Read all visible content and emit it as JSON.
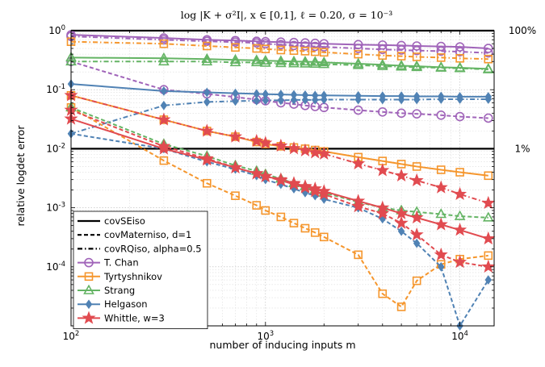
{
  "chart_data": {
    "type": "line",
    "title": "log |K + σ²I|, x ∈ [0,1], ℓ = 0.20, σ = 10⁻³",
    "xlabel": "number of inducing inputs m",
    "ylabel": "relative logdet error",
    "xscale": "log",
    "yscale": "log",
    "xlim": [
      100,
      15000
    ],
    "ylim": [
      1e-05,
      1
    ],
    "grid": true,
    "legend_position": "bottom-left",
    "x_ticks": [
      {
        "value": 100,
        "base": "10",
        "exp": "2"
      },
      {
        "value": 1000,
        "base": "10",
        "exp": "3"
      },
      {
        "value": 10000,
        "base": "10",
        "exp": "4"
      }
    ],
    "y_ticks": [
      {
        "value": 1,
        "base": "10",
        "exp": "0"
      },
      {
        "value": 0.1,
        "base": "10",
        "exp": "-1"
      },
      {
        "value": 0.01,
        "base": "10",
        "exp": "-2"
      },
      {
        "value": 0.001,
        "base": "10",
        "exp": "-3"
      },
      {
        "value": 0.0001,
        "base": "10",
        "exp": "-4"
      }
    ],
    "reference_lines": [
      {
        "value": 1,
        "label": "100%"
      },
      {
        "value": 0.01,
        "label": "1%"
      }
    ],
    "x": [
      100,
      300,
      500,
      700,
      900,
      1000,
      1200,
      1400,
      1600,
      1800,
      2000,
      3000,
      4000,
      5000,
      6000,
      8000,
      10000,
      14000
    ],
    "kernels": [
      {
        "name": "covSEiso",
        "dash": "solid"
      },
      {
        "name": "covMaterniso, d=1",
        "dash": "dashed"
      },
      {
        "name": "covRQiso, alpha=0.5",
        "dash": "dashdot"
      }
    ],
    "methods": [
      {
        "name": "T. Chan",
        "color": "#a064b9",
        "marker": "circle"
      },
      {
        "name": "Tyrtyshnikov",
        "color": "#f5962d",
        "marker": "square"
      },
      {
        "name": "Strang",
        "color": "#64b464",
        "marker": "triangle"
      },
      {
        "name": "Helgason",
        "color": "#5082b4",
        "marker": "diamond"
      },
      {
        "name": "Whittle, w=3",
        "color": "#e14b50",
        "marker": "star"
      }
    ],
    "series": [
      {
        "method": 0,
        "kernel": 0,
        "values": [
          0.85,
          0.75,
          0.7,
          0.68,
          0.66,
          0.65,
          0.64,
          0.63,
          0.62,
          0.61,
          0.6,
          0.58,
          0.57,
          0.56,
          0.55,
          0.54,
          0.53,
          0.5
        ]
      },
      {
        "method": 0,
        "kernel": 1,
        "values": [
          0.3,
          0.1,
          0.085,
          0.075,
          0.068,
          0.065,
          0.06,
          0.057,
          0.054,
          0.052,
          0.05,
          0.045,
          0.042,
          0.04,
          0.039,
          0.037,
          0.035,
          0.033
        ]
      },
      {
        "method": 0,
        "kernel": 2,
        "values": [
          0.8,
          0.7,
          0.66,
          0.64,
          0.62,
          0.6,
          0.58,
          0.56,
          0.55,
          0.54,
          0.53,
          0.5,
          0.48,
          0.47,
          0.46,
          0.45,
          0.44,
          0.42
        ]
      },
      {
        "method": 1,
        "kernel": 0,
        "values": [
          0.08,
          0.031,
          0.02,
          0.016,
          0.013,
          0.012,
          0.011,
          0.0105,
          0.01,
          0.0095,
          0.009,
          0.0072,
          0.0062,
          0.0055,
          0.005,
          0.0044,
          0.004,
          0.0035
        ]
      },
      {
        "method": 1,
        "kernel": 1,
        "values": [
          0.05,
          0.0063,
          0.0026,
          0.0016,
          0.0011,
          0.0009,
          0.0007,
          0.00055,
          0.00045,
          0.00038,
          0.00032,
          0.00016,
          3.5e-05,
          2.1e-05,
          5.8e-05,
          0.00011,
          0.000135,
          0.000155
        ]
      },
      {
        "method": 1,
        "kernel": 2,
        "values": [
          0.65,
          0.6,
          0.55,
          0.52,
          0.5,
          0.49,
          0.47,
          0.46,
          0.45,
          0.44,
          0.43,
          0.4,
          0.38,
          0.37,
          0.36,
          0.35,
          0.34,
          0.33
        ]
      },
      {
        "method": 2,
        "kernel": 0,
        "values": [
          0.35,
          0.34,
          0.33,
          0.32,
          0.315,
          0.31,
          0.305,
          0.3,
          0.298,
          0.295,
          0.29,
          0.275,
          0.265,
          0.255,
          0.25,
          0.24,
          0.235,
          0.225
        ]
      },
      {
        "method": 2,
        "kernel": 1,
        "values": [
          0.05,
          0.012,
          0.0075,
          0.0052,
          0.0042,
          0.0037,
          0.0031,
          0.0026,
          0.0023,
          0.002,
          0.0018,
          0.00125,
          0.001,
          0.0009,
          0.00085,
          0.00078,
          0.00072,
          0.00068
        ]
      },
      {
        "method": 2,
        "kernel": 2,
        "values": [
          0.3,
          0.3,
          0.3,
          0.29,
          0.29,
          0.285,
          0.28,
          0.278,
          0.276,
          0.274,
          0.27,
          0.26,
          0.25,
          0.245,
          0.24,
          0.235,
          0.23,
          0.22
        ]
      },
      {
        "method": 3,
        "kernel": 0,
        "values": [
          0.125,
          0.095,
          0.09,
          0.087,
          0.085,
          0.084,
          0.083,
          0.082,
          0.081,
          0.08,
          0.08,
          0.079,
          0.078,
          0.078,
          0.077,
          0.077,
          0.076,
          0.076
        ]
      },
      {
        "method": 3,
        "kernel": 1,
        "values": [
          0.018,
          0.01,
          0.006,
          0.0045,
          0.0035,
          0.003,
          0.0025,
          0.0021,
          0.0018,
          0.0016,
          0.0014,
          0.001,
          0.00065,
          0.0004,
          0.00025,
          0.0001,
          1e-05,
          6e-05
        ]
      },
      {
        "method": 3,
        "kernel": 2,
        "values": [
          0.018,
          0.054,
          0.062,
          0.064,
          0.065,
          0.066,
          0.066,
          0.067,
          0.067,
          0.067,
          0.068,
          0.068,
          0.068,
          0.068,
          0.068,
          0.069,
          0.069,
          0.069
        ]
      },
      {
        "method": 4,
        "kernel": 0,
        "values": [
          0.032,
          0.01,
          0.0065,
          0.0048,
          0.0038,
          0.0034,
          0.003,
          0.0026,
          0.0023,
          0.0021,
          0.0019,
          0.0013,
          0.001,
          0.0008,
          0.00068,
          0.00052,
          0.00042,
          0.0003
        ]
      },
      {
        "method": 4,
        "kernel": 1,
        "values": [
          0.045,
          0.011,
          0.0068,
          0.0048,
          0.0038,
          0.0034,
          0.0029,
          0.0025,
          0.0022,
          0.0019,
          0.0017,
          0.00105,
          0.0008,
          0.00055,
          0.00035,
          0.00016,
          0.00012,
          0.0001
        ]
      },
      {
        "method": 4,
        "kernel": 2,
        "values": [
          0.08,
          0.031,
          0.02,
          0.016,
          0.0135,
          0.0125,
          0.0112,
          0.0101,
          0.0093,
          0.0086,
          0.0082,
          0.0056,
          0.0043,
          0.0035,
          0.0029,
          0.0022,
          0.0017,
          0.0012
        ]
      }
    ]
  }
}
